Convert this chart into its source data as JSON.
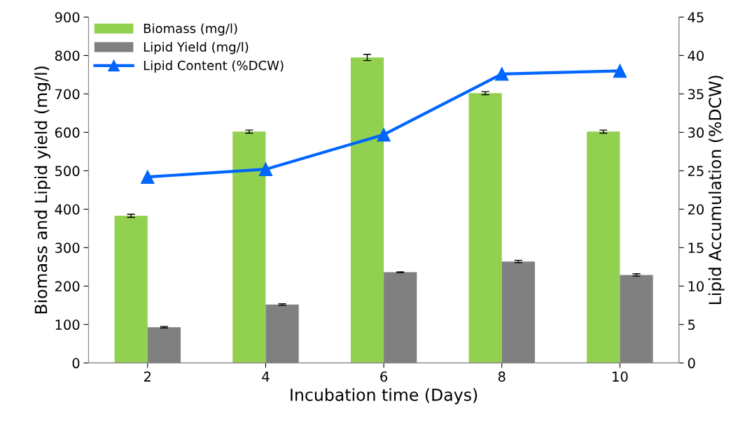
{
  "chart_data": {
    "type": "bar",
    "xlabel": "Incubation time (Days)",
    "ylabel": "Biomass and Lipid yield (mg/l)",
    "y2label": "Lipid Accumulation (%DCW)",
    "categories": [
      "2",
      "4",
      "6",
      "8",
      "10"
    ],
    "series": [
      {
        "name": "Biomass (mg/l)",
        "color": "#92d050",
        "values": [
          383,
          602,
          795,
          702,
          602
        ],
        "errors": [
          4,
          4,
          8,
          4,
          4
        ]
      },
      {
        "name": "Lipid Yield (mg/l)",
        "color": "#808080",
        "values": [
          93,
          152,
          236,
          264,
          229
        ],
        "errors": [
          2,
          2,
          1,
          3,
          3
        ]
      },
      {
        "name": "Lipid Content (%DCW)",
        "type": "line",
        "axis": "y2",
        "color": "#0066ff",
        "marker": "triangle",
        "values": [
          24.2,
          25.2,
          29.7,
          37.6,
          38.0
        ]
      }
    ],
    "ylim": [
      0,
      900
    ],
    "yticks": [
      0,
      100,
      200,
      300,
      400,
      500,
      600,
      700,
      800,
      900
    ],
    "y2lim": [
      0,
      45
    ],
    "y2ticks": [
      0,
      5,
      10,
      15,
      20,
      25,
      30,
      35,
      40,
      45
    ],
    "grid": false,
    "legend": "top left"
  }
}
